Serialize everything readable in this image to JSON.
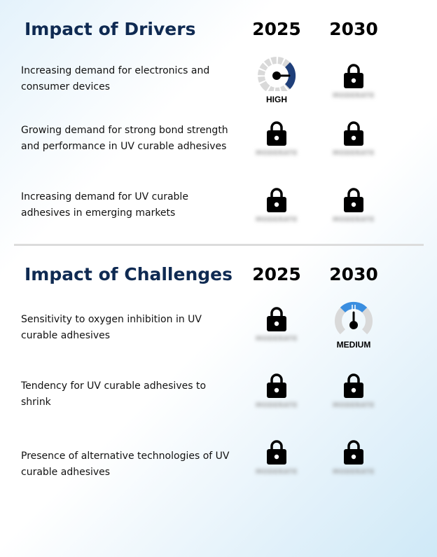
{
  "drivers": {
    "title": "Impact of Drivers",
    "year_a": "2025",
    "year_b": "2030",
    "rows": [
      {
        "text": "Increasing demand for electronics and consumer devices",
        "cell_a": {
          "type": "gauge",
          "label": "HIGH",
          "color": "#1f3f7a",
          "icon": "gauge-high-icon"
        },
        "cell_b": {
          "type": "locked",
          "label": "MODERATE",
          "icon": "lock-icon"
        }
      },
      {
        "text": "Growing demand for strong bond strength and performance in UV curable adhesives",
        "cell_a": {
          "type": "locked",
          "label": "MODERATE",
          "icon": "lock-icon"
        },
        "cell_b": {
          "type": "locked",
          "label": "MODERATE",
          "icon": "lock-icon"
        }
      },
      {
        "text": "Increasing demand for UV curable adhesives in emerging markets",
        "cell_a": {
          "type": "locked",
          "label": "MODERATE",
          "icon": "lock-icon"
        },
        "cell_b": {
          "type": "locked",
          "label": "MODERATE",
          "icon": "lock-icon"
        }
      }
    ]
  },
  "challenges": {
    "title": "Impact of Challenges",
    "year_a": "2025",
    "year_b": "2030",
    "rows": [
      {
        "text": "Sensitivity to oxygen inhibition in UV curable adhesives",
        "cell_a": {
          "type": "locked",
          "label": "MODERATE",
          "icon": "lock-icon"
        },
        "cell_b": {
          "type": "gauge",
          "label": "MEDIUM",
          "color": "#3a8ee0",
          "icon": "gauge-medium-icon"
        }
      },
      {
        "text": "Tendency for UV curable adhesives to shrink",
        "cell_a": {
          "type": "locked",
          "label": "MODERATE",
          "icon": "lock-icon"
        },
        "cell_b": {
          "type": "locked",
          "label": "MODERATE",
          "icon": "lock-icon"
        }
      },
      {
        "text": "Presence of alternative technologies of UV curable adhesives",
        "cell_a": {
          "type": "locked",
          "label": "MODERATE",
          "icon": "lock-icon"
        },
        "cell_b": {
          "type": "locked",
          "label": "MODERATE",
          "icon": "lock-icon"
        }
      }
    ]
  },
  "colors": {
    "title": "#0f2a52",
    "gauge_track": "#d9d9d9",
    "high": "#1f3f7a",
    "medium": "#3a8ee0"
  }
}
